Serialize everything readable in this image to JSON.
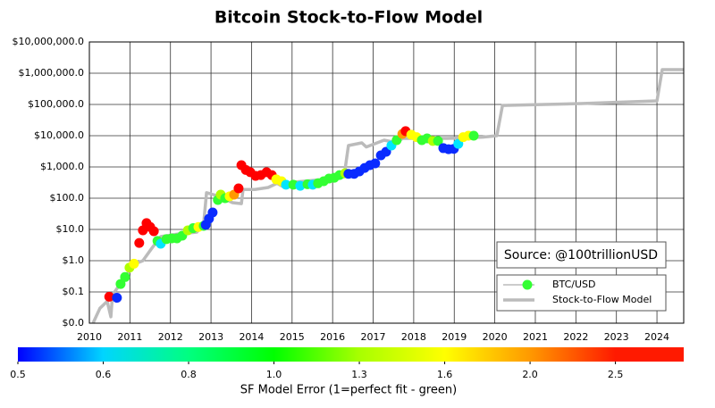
{
  "chart_data": {
    "type": "scatter",
    "title": "Bitcoin Stock-to-Flow Model",
    "annotation": "Source: @100trillionUSD",
    "log_y": true,
    "grid": true,
    "xlim": [
      2010,
      2024.66
    ],
    "xticks": [
      2010,
      2011,
      2012,
      2013,
      2014,
      2015,
      2016,
      2017,
      2018,
      2019,
      2020,
      2021,
      2022,
      2023,
      2024
    ],
    "ylim": [
      0.01,
      10000000
    ],
    "yticks": [
      {
        "value": 0.01,
        "label": "$0.0"
      },
      {
        "value": 0.1,
        "label": "$0.1"
      },
      {
        "value": 1,
        "label": "$1.0"
      },
      {
        "value": 10,
        "label": "$10.0"
      },
      {
        "value": 100,
        "label": "$100.0"
      },
      {
        "value": 1000,
        "label": "$1,000.0"
      },
      {
        "value": 10000,
        "label": "$10,000.0"
      },
      {
        "value": 100000,
        "label": "$100,000.0"
      },
      {
        "value": 1000000,
        "label": "$1,000,000.0"
      },
      {
        "value": 10000000,
        "label": "$10,000,000.0"
      }
    ],
    "series": [
      {
        "name": "BTC/USD",
        "color": "#33ff33",
        "x": [
          2010.49,
          2010.68,
          2010.77,
          2010.88,
          2010.99,
          2011.1,
          2011.23,
          2011.32,
          2011.41,
          2011.5,
          2011.59,
          2011.68,
          2011.76,
          2011.9,
          2012.03,
          2012.16,
          2012.29,
          2012.43,
          2012.56,
          2012.69,
          2012.82,
          2012.87,
          2012.95,
          2013.04,
          2013.17,
          2013.24,
          2013.35,
          2013.46,
          2013.57,
          2013.68,
          2013.75,
          2013.86,
          2013.97,
          2014.1,
          2014.23,
          2014.37,
          2014.5,
          2014.61,
          2014.74,
          2014.85,
          2015.03,
          2015.2,
          2015.38,
          2015.51,
          2015.64,
          2015.78,
          2015.91,
          2016.04,
          2016.17,
          2016.31,
          2016.39,
          2016.53,
          2016.66,
          2016.79,
          2016.92,
          2017.05,
          2017.19,
          2017.32,
          2017.45,
          2017.58,
          2017.72,
          2017.8,
          2017.94,
          2018.07,
          2018.2,
          2018.33,
          2018.47,
          2018.6,
          2018.73,
          2018.86,
          2018.99,
          2019.1,
          2019.22,
          2019.35,
          2019.48
        ],
        "values": [
          0.07,
          0.065,
          0.18,
          0.3,
          0.6,
          0.8,
          3.7,
          9.4,
          16,
          12,
          8.8,
          4.3,
          3.5,
          4.9,
          5.2,
          5.2,
          6.3,
          9.4,
          11,
          12,
          13,
          14,
          22,
          35,
          88,
          130,
          100,
          115,
          130,
          206,
          1140,
          800,
          680,
          520,
          550,
          680,
          550,
          400,
          350,
          270,
          270,
          250,
          280,
          270,
          300,
          350,
          425,
          450,
          550,
          630,
          600,
          600,
          720,
          930,
          1140,
          1300,
          2350,
          3060,
          4850,
          7200,
          11400,
          14000,
          10800,
          9000,
          7200,
          8200,
          6800,
          6800,
          4000,
          3700,
          3800,
          5500,
          9000,
          10000,
          10000
        ],
        "colors": [
          "#ff0000",
          "#0a2bff",
          "#33ff33",
          "#33ff33",
          "#b0ff00",
          "#ffff00",
          "#ff0000",
          "#ff0000",
          "#ff0000",
          "#ff0000",
          "#ff0000",
          "#33ff33",
          "#00e5ff",
          "#33ff33",
          "#33ff33",
          "#33ff33",
          "#33ff33",
          "#b0ff00",
          "#33ff33",
          "#ffff00",
          "#33ff33",
          "#0a2bff",
          "#0a2bff",
          "#0a2bff",
          "#33ff33",
          "#b0ff00",
          "#33ff33",
          "#ffff00",
          "#ff9900",
          "#ff0000",
          "#ff0000",
          "#ff0000",
          "#ff0000",
          "#ff0000",
          "#ff0000",
          "#ff0000",
          "#ff0000",
          "#ffff00",
          "#ffff00",
          "#00e5ff",
          "#33ff33",
          "#00e5ff",
          "#33ff33",
          "#00e5ff",
          "#33ff33",
          "#33ff33",
          "#33ff33",
          "#33ff33",
          "#33ff33",
          "#b0ff00",
          "#0a2bff",
          "#0a2bff",
          "#0a2bff",
          "#0a2bff",
          "#0a2bff",
          "#0a2bff",
          "#0a2bff",
          "#0a2bff",
          "#00e5ff",
          "#33ff33",
          "#ff9900",
          "#ff0000",
          "#ffff00",
          "#ffff00",
          "#33ff33",
          "#33ff33",
          "#b0ff00",
          "#33ff33",
          "#0a2bff",
          "#0a2bff",
          "#0a2bff",
          "#00e5ff",
          "#ffff00",
          "#ffff00",
          "#33ff33"
        ]
      },
      {
        "name": "Stock-to-Flow Model",
        "type": "line",
        "color": "#bbbbbb",
        "x": [
          2010.09,
          2010.26,
          2010.44,
          2010.53,
          2010.57,
          2010.88,
          2011.1,
          2011.32,
          2011.54,
          2011.76,
          2012.21,
          2012.65,
          2012.82,
          2012.89,
          2013.2,
          2013.53,
          2013.75,
          2013.79,
          2014.08,
          2014.41,
          2014.63,
          2014.81,
          2015.07,
          2015.51,
          2015.95,
          2016.28,
          2016.39,
          2016.72,
          2016.83,
          2017.27,
          2017.6,
          2017.72,
          2018.16,
          2018.82,
          2019.7,
          2020.05,
          2020.19,
          2022.13,
          2024.0,
          2024.13,
          2024.66
        ],
        "values": [
          0.01,
          0.03,
          0.05,
          0.016,
          0.08,
          0.3,
          0.77,
          1,
          2.5,
          5.9,
          7.2,
          8.2,
          16,
          150,
          115,
          72,
          67,
          190,
          190,
          220,
          300,
          220,
          330,
          370,
          425,
          480,
          4850,
          5900,
          4350,
          7200,
          5900,
          8200,
          8200,
          8200,
          9000,
          10000,
          93000,
          107000,
          130000,
          1300000,
          1300000
        ]
      }
    ],
    "colorbar": {
      "label": "SF Model Error (1=perfect fit - green)",
      "clim": [
        0.5,
        2.9
      ],
      "ticks": [
        0.5,
        0.6,
        0.8,
        {
          "value": 1,
          "label": "1.0"
        },
        1.3,
        1.6,
        {
          "value": 2,
          "label": "2.0"
        },
        2.5
      ],
      "colors": [
        "#0000ff",
        "#00d5ff",
        "#00ff80",
        "#00ff00",
        "#a8ff00",
        "#ffff00",
        "#ff9900",
        "#ff1a00"
      ]
    }
  }
}
